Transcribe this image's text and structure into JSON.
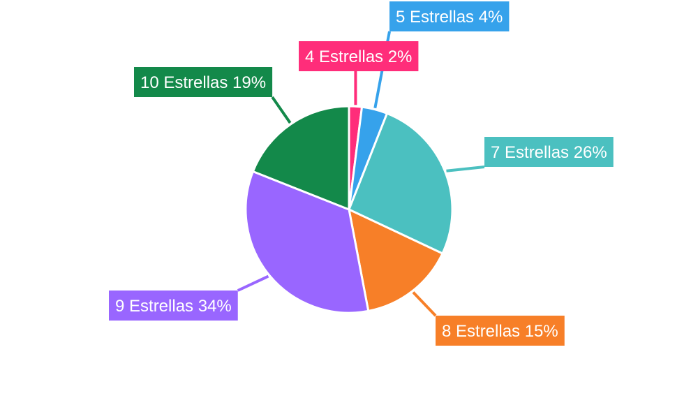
{
  "chart_data": {
    "type": "pie",
    "title": "",
    "categories": [
      "4 Estrellas",
      "5 Estrellas",
      "7 Estrellas",
      "8 Estrellas",
      "9 Estrellas",
      "10 Estrellas"
    ],
    "values": [
      2,
      4,
      26,
      15,
      34,
      19
    ],
    "labels": [
      "4 Estrellas 2%",
      "5 Estrellas 4%",
      "7 Estrellas 26%",
      "8 Estrellas 15%",
      "9 Estrellas 34%",
      "10 Estrellas 19%"
    ],
    "colors": [
      "#ff2d7a",
      "#36a2eb",
      "#4bc0c0",
      "#f77f28",
      "#9966ff",
      "#13894a"
    ],
    "start_angle_deg": 0,
    "direction": "clockwise",
    "legend": "none"
  }
}
